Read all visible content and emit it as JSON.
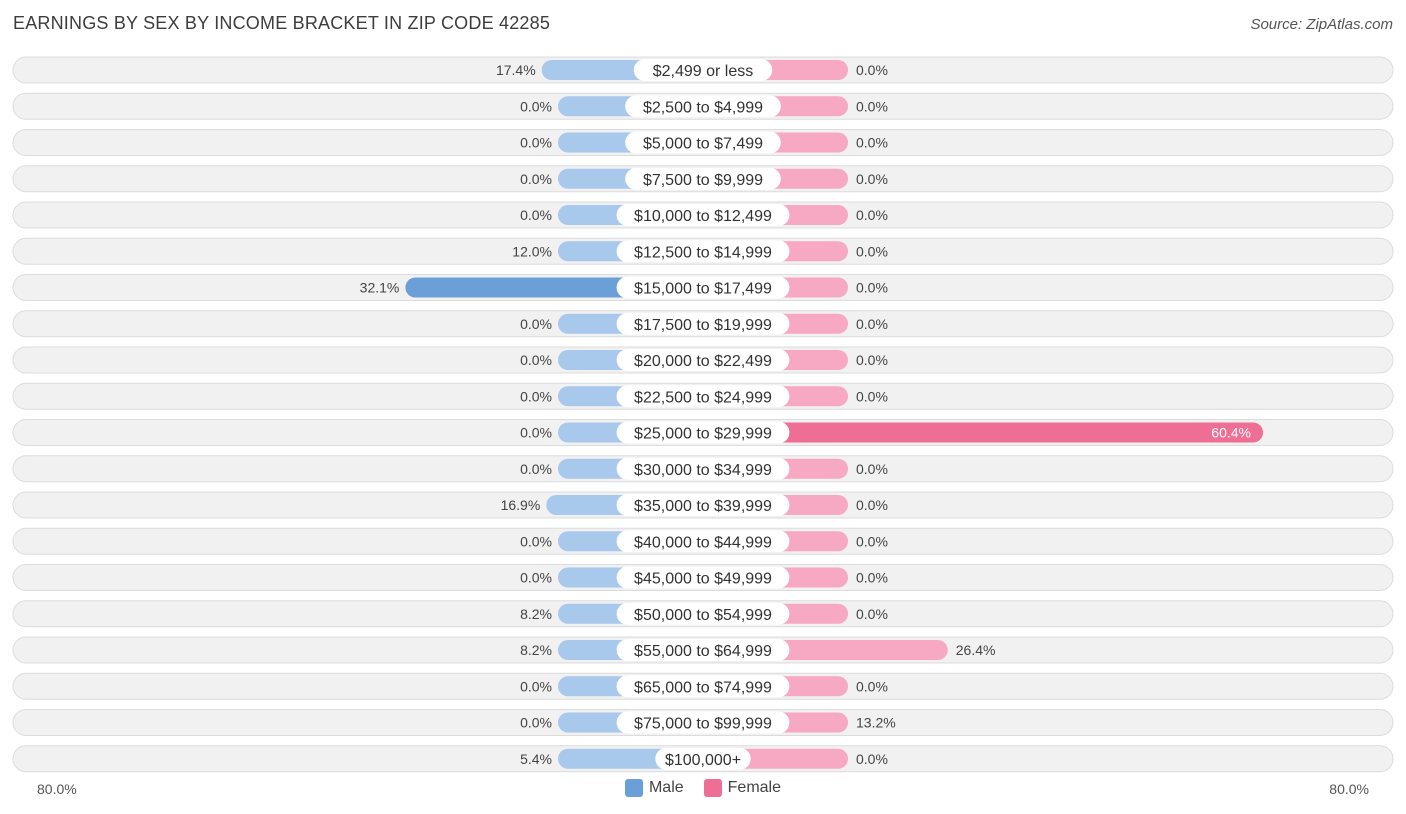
{
  "header": {
    "title": "EARNINGS BY SEX BY INCOME BRACKET IN ZIP CODE 42285",
    "source": "Source: ZipAtlas.com"
  },
  "axis": {
    "left_label": "80.0%",
    "right_label": "80.0%"
  },
  "legend": {
    "male_label": "Male",
    "female_label": "Female"
  },
  "colors": {
    "male_light": "#a8c8ec",
    "male_strong": "#6a9fd8",
    "female_light": "#f7a8c2",
    "female_strong": "#ef6e96",
    "row_bg": "#f1f1f1",
    "row_border": "#dcdcdc"
  },
  "chart_data": {
    "type": "bar",
    "orientation": "horizontal-diverging",
    "title": "EARNINGS BY SEX BY INCOME BRACKET IN ZIP CODE 42285",
    "xlim": [
      -80,
      80
    ],
    "categories": [
      "$2,499 or less",
      "$2,500 to $4,999",
      "$5,000 to $7,499",
      "$7,500 to $9,999",
      "$10,000 to $12,499",
      "$12,500 to $14,999",
      "$15,000 to $17,499",
      "$17,500 to $19,999",
      "$20,000 to $22,499",
      "$22,500 to $24,999",
      "$25,000 to $29,999",
      "$30,000 to $34,999",
      "$35,000 to $39,999",
      "$40,000 to $44,999",
      "$45,000 to $49,999",
      "$50,000 to $54,999",
      "$55,000 to $64,999",
      "$65,000 to $74,999",
      "$75,000 to $99,999",
      "$100,000+"
    ],
    "series": [
      {
        "name": "Male",
        "values": [
          17.4,
          0.0,
          0.0,
          0.0,
          0.0,
          12.0,
          32.1,
          0.0,
          0.0,
          0.0,
          0.0,
          0.0,
          16.9,
          0.0,
          0.0,
          8.2,
          8.2,
          0.0,
          0.0,
          5.4
        ],
        "labels": [
          "17.4%",
          "0.0%",
          "0.0%",
          "0.0%",
          "0.0%",
          "12.0%",
          "32.1%",
          "0.0%",
          "0.0%",
          "0.0%",
          "0.0%",
          "0.0%",
          "16.9%",
          "0.0%",
          "0.0%",
          "8.2%",
          "8.2%",
          "0.0%",
          "0.0%",
          "5.4%"
        ]
      },
      {
        "name": "Female",
        "values": [
          0.0,
          0.0,
          0.0,
          0.0,
          0.0,
          0.0,
          0.0,
          0.0,
          0.0,
          0.0,
          60.4,
          0.0,
          0.0,
          0.0,
          0.0,
          0.0,
          26.4,
          0.0,
          13.2,
          0.0
        ],
        "labels": [
          "0.0%",
          "0.0%",
          "0.0%",
          "0.0%",
          "0.0%",
          "0.0%",
          "0.0%",
          "0.0%",
          "0.0%",
          "0.0%",
          "60.4%",
          "0.0%",
          "0.0%",
          "0.0%",
          "0.0%",
          "0.0%",
          "26.4%",
          "0.0%",
          "13.2%",
          "0.0%"
        ]
      }
    ]
  }
}
